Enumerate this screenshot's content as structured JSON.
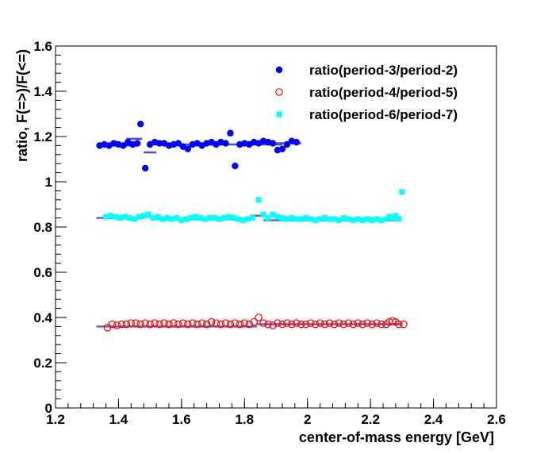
{
  "chart_data": {
    "type": "scatter",
    "xlabel": "center-of-mass energy [GeV]",
    "ylabel": "ratio, F(=>)/F(<=)",
    "xlim": [
      1.2,
      2.6
    ],
    "ylim": [
      0,
      1.6
    ],
    "xticks": [
      "1.2",
      "1.4",
      "1.6",
      "1.8",
      "2",
      "2.2",
      "2.4",
      "2.6"
    ],
    "yticks": [
      "0",
      "0.2",
      "0.4",
      "0.6",
      "0.8",
      "1",
      "1.2",
      "1.4",
      "1.6"
    ],
    "grid": false,
    "legend_position": "top-right",
    "series": [
      {
        "name": "ratio(period-3/period-2)",
        "marker": "filled-circle",
        "color": "#0000ff",
        "x": [
          1.34,
          1.355,
          1.37,
          1.385,
          1.4,
          1.415,
          1.43,
          1.445,
          1.46,
          1.47,
          1.485,
          1.5,
          1.515,
          1.53,
          1.545,
          1.56,
          1.575,
          1.59,
          1.605,
          1.62,
          1.635,
          1.65,
          1.665,
          1.68,
          1.695,
          1.71,
          1.725,
          1.74,
          1.755,
          1.77,
          1.785,
          1.8,
          1.815,
          1.83,
          1.845,
          1.86,
          1.875,
          1.89,
          1.905,
          1.92,
          1.935,
          1.95,
          1.965
        ],
        "y": [
          1.16,
          1.165,
          1.16,
          1.17,
          1.165,
          1.16,
          1.175,
          1.165,
          1.17,
          1.255,
          1.06,
          1.165,
          1.175,
          1.17,
          1.17,
          1.16,
          1.165,
          1.17,
          1.155,
          1.145,
          1.165,
          1.17,
          1.16,
          1.17,
          1.175,
          1.165,
          1.175,
          1.17,
          1.215,
          1.07,
          1.165,
          1.17,
          1.165,
          1.175,
          1.17,
          1.18,
          1.175,
          1.17,
          1.14,
          1.145,
          1.165,
          1.18,
          1.175
        ]
      },
      {
        "name": "ratio(period-4/period-5)",
        "marker": "open-circle",
        "color": "#ff0000",
        "x": [
          1.365,
          1.38,
          1.395,
          1.41,
          1.425,
          1.44,
          1.455,
          1.47,
          1.485,
          1.5,
          1.515,
          1.53,
          1.545,
          1.56,
          1.575,
          1.59,
          1.605,
          1.62,
          1.635,
          1.65,
          1.665,
          1.68,
          1.695,
          1.71,
          1.725,
          1.74,
          1.755,
          1.77,
          1.785,
          1.8,
          1.815,
          1.83,
          1.845,
          1.86,
          1.875,
          1.89,
          1.905,
          1.92,
          1.935,
          1.95,
          1.965,
          1.98,
          1.995,
          2.01,
          2.025,
          2.04,
          2.055,
          2.07,
          2.085,
          2.1,
          2.115,
          2.13,
          2.145,
          2.16,
          2.175,
          2.19,
          2.205,
          2.22,
          2.235,
          2.25,
          2.26,
          2.27,
          2.28,
          2.29,
          2.305
        ],
        "y": [
          0.355,
          0.37,
          0.365,
          0.37,
          0.37,
          0.375,
          0.375,
          0.37,
          0.375,
          0.37,
          0.375,
          0.37,
          0.375,
          0.37,
          0.375,
          0.37,
          0.375,
          0.37,
          0.375,
          0.37,
          0.375,
          0.37,
          0.38,
          0.375,
          0.37,
          0.375,
          0.37,
          0.375,
          0.37,
          0.375,
          0.37,
          0.38,
          0.4,
          0.375,
          0.37,
          0.365,
          0.375,
          0.37,
          0.375,
          0.37,
          0.375,
          0.37,
          0.37,
          0.375,
          0.37,
          0.375,
          0.37,
          0.375,
          0.37,
          0.375,
          0.37,
          0.375,
          0.37,
          0.375,
          0.37,
          0.375,
          0.37,
          0.375,
          0.37,
          0.37,
          0.38,
          0.385,
          0.38,
          0.37,
          0.37
        ]
      },
      {
        "name": "ratio(period-6/period-7)",
        "marker": "filled-square",
        "color": "#00ffff",
        "x": [
          1.36,
          1.375,
          1.39,
          1.405,
          1.42,
          1.435,
          1.45,
          1.465,
          1.48,
          1.495,
          1.51,
          1.525,
          1.54,
          1.555,
          1.57,
          1.585,
          1.6,
          1.615,
          1.63,
          1.645,
          1.66,
          1.675,
          1.69,
          1.705,
          1.72,
          1.735,
          1.75,
          1.765,
          1.78,
          1.795,
          1.81,
          1.825,
          1.845,
          1.86,
          1.875,
          1.89,
          1.905,
          1.92,
          1.935,
          1.95,
          1.965,
          1.98,
          1.995,
          2.01,
          2.025,
          2.04,
          2.055,
          2.07,
          2.085,
          2.1,
          2.115,
          2.13,
          2.145,
          2.16,
          2.175,
          2.19,
          2.205,
          2.22,
          2.235,
          2.25,
          2.26,
          2.27,
          2.28,
          2.29,
          2.3
        ],
        "y": [
          0.845,
          0.85,
          0.845,
          0.84,
          0.845,
          0.84,
          0.835,
          0.845,
          0.85,
          0.855,
          0.84,
          0.845,
          0.835,
          0.84,
          0.835,
          0.84,
          0.83,
          0.835,
          0.84,
          0.845,
          0.84,
          0.835,
          0.84,
          0.84,
          0.835,
          0.84,
          0.845,
          0.84,
          0.835,
          0.83,
          0.835,
          0.84,
          0.92,
          0.855,
          0.84,
          0.855,
          0.845,
          0.84,
          0.835,
          0.84,
          0.835,
          0.835,
          0.84,
          0.835,
          0.83,
          0.835,
          0.84,
          0.835,
          0.835,
          0.83,
          0.84,
          0.835,
          0.83,
          0.835,
          0.83,
          0.835,
          0.83,
          0.835,
          0.83,
          0.835,
          0.845,
          0.84,
          0.85,
          0.835,
          0.955
        ]
      }
    ],
    "fit_lines": [
      {
        "color": "#4b4bd6",
        "segments": [
          [
            1.33,
            1.46,
            1.16
          ],
          [
            1.425,
            1.475,
            1.19
          ],
          [
            1.48,
            1.52,
            1.13
          ],
          [
            1.52,
            1.74,
            1.165
          ],
          [
            1.74,
            1.92,
            1.165
          ],
          [
            1.88,
            1.98,
            1.17
          ]
        ]
      },
      {
        "color": "#6464c8",
        "segments": [
          [
            1.33,
            1.48,
            0.84
          ],
          [
            1.48,
            1.52,
            0.845
          ],
          [
            1.52,
            1.82,
            0.835
          ],
          [
            1.82,
            1.86,
            0.85
          ],
          [
            1.86,
            2.28,
            0.83
          ]
        ]
      },
      {
        "color": "#6464c8",
        "segments": [
          [
            1.33,
            1.84,
            0.36
          ],
          [
            1.84,
            2.3,
            0.37
          ]
        ]
      }
    ]
  }
}
